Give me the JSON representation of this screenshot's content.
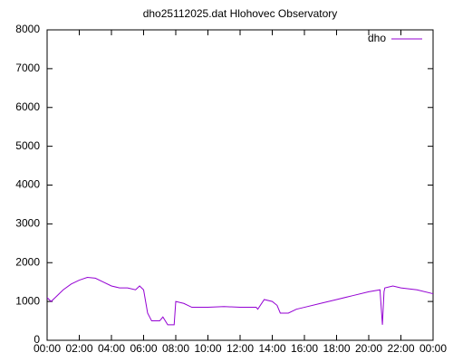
{
  "chart_data": {
    "type": "line",
    "title": "dho25112025.dat Hlohovec Observatory",
    "x": [
      0,
      0.25,
      0.5,
      1,
      1.5,
      2,
      2.5,
      3,
      3.5,
      4,
      4.5,
      5,
      5.5,
      5.75,
      6,
      6.25,
      6.5,
      7,
      7.2,
      7.5,
      7.9,
      8.0,
      8.5,
      9,
      10,
      11,
      12,
      13,
      13.1,
      13.5,
      14,
      14.3,
      14.5,
      15,
      15.5,
      16,
      17,
      18,
      19,
      20,
      20.7,
      20.85,
      20.95,
      21,
      21.5,
      22,
      23,
      24
    ],
    "series": [
      {
        "name": "dho",
        "color": "#9400d3",
        "values": [
          1100,
          1000,
          1100,
          1300,
          1450,
          1550,
          1620,
          1600,
          1500,
          1400,
          1350,
          1350,
          1300,
          1400,
          1300,
          700,
          500,
          500,
          600,
          400,
          400,
          1000,
          950,
          850,
          850,
          870,
          850,
          850,
          800,
          1050,
          1000,
          900,
          700,
          700,
          800,
          850,
          950,
          1050,
          1150,
          1250,
          1300,
          400,
          1250,
          1350,
          1400,
          1350,
          1300,
          1200
        ]
      }
    ],
    "xlim": [
      0,
      24
    ],
    "xticks": [
      {
        "value": 0,
        "label": "00:00"
      },
      {
        "value": 2,
        "label": "02:00"
      },
      {
        "value": 4,
        "label": "04:00"
      },
      {
        "value": 6,
        "label": "06:00"
      },
      {
        "value": 8,
        "label": "08:00"
      },
      {
        "value": 10,
        "label": "10:00"
      },
      {
        "value": 12,
        "label": "12:00"
      },
      {
        "value": 14,
        "label": "14:00"
      },
      {
        "value": 16,
        "label": "16:00"
      },
      {
        "value": 18,
        "label": "18:00"
      },
      {
        "value": 20,
        "label": "20:00"
      },
      {
        "value": 22,
        "label": "22:00"
      },
      {
        "value": 24,
        "label": "00:00"
      }
    ],
    "ylim": [
      0,
      8000
    ],
    "yticks": [
      0,
      1000,
      2000,
      3000,
      4000,
      5000,
      6000,
      7000,
      8000
    ],
    "grid": false,
    "legend": "top-right"
  }
}
